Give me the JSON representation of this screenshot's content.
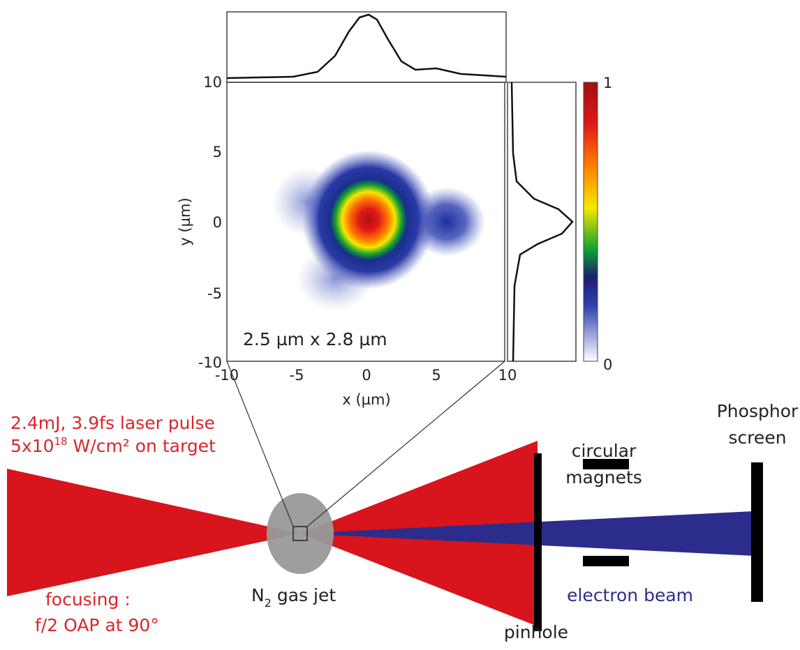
{
  "focal_spot": {
    "x_label": "x (µm)",
    "y_label": "y (µm)",
    "x_ticks": [
      "-10",
      "-5",
      "0",
      "5",
      "10"
    ],
    "y_ticks": [
      "10",
      "5",
      "0",
      "-5",
      "-10"
    ],
    "annotation": "2.5 µm x 2.8 µm",
    "colorbar_ticks": [
      "1",
      "0"
    ]
  },
  "setup": {
    "laser_line1": "2.4mJ, 3.9fs laser pulse",
    "laser_line2_base": "5x10",
    "laser_line2_exp": "18",
    "laser_line2_rest": " W/cm² on target",
    "focusing_line1": "focusing :",
    "focusing_line2": "f/2 OAP at 90°",
    "gas_jet_base": "N",
    "gas_jet_sub": "2",
    "gas_jet_rest": " gas jet",
    "magnets_line1": "circular",
    "magnets_line2": "magnets",
    "screen_line1": "Phosphor",
    "screen_line2": "screen",
    "electron_beam": "electron beam",
    "pinhole": "pinhole"
  }
}
